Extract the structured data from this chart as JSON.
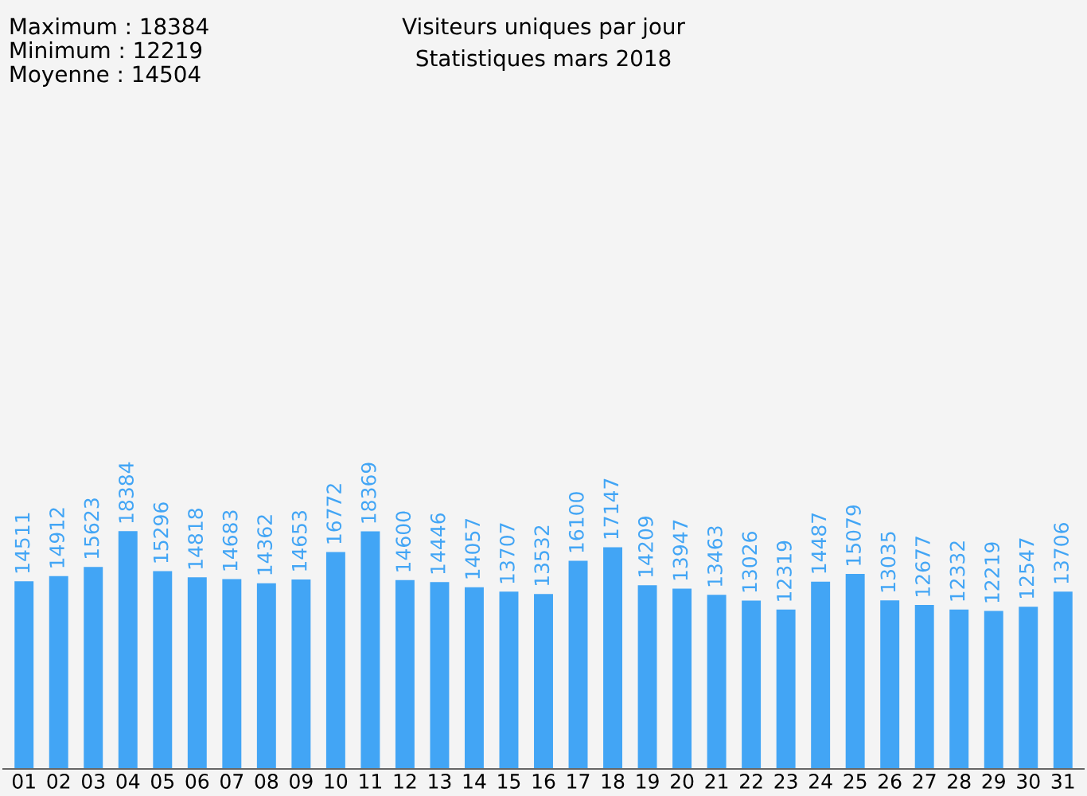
{
  "chart_data": {
    "type": "bar",
    "title": "Visiteurs uniques par jour",
    "subtitle": "Statistiques mars 2018",
    "annotations": [
      "Maximum : 18384",
      "Minimum : 12219",
      "Moyenne : 14504"
    ],
    "categories": [
      "01",
      "02",
      "03",
      "04",
      "05",
      "06",
      "07",
      "08",
      "09",
      "10",
      "11",
      "12",
      "13",
      "14",
      "15",
      "16",
      "17",
      "18",
      "19",
      "20",
      "21",
      "22",
      "23",
      "24",
      "25",
      "26",
      "27",
      "28",
      "29",
      "30",
      "31"
    ],
    "values": [
      14511,
      14912,
      15623,
      18384,
      15296,
      14818,
      14683,
      14362,
      14653,
      16772,
      18369,
      14600,
      14446,
      14057,
      13707,
      13532,
      16100,
      17147,
      14209,
      13947,
      13463,
      13026,
      12319,
      14487,
      15079,
      13035,
      12677,
      12332,
      12219,
      12547,
      13706
    ],
    "color": "#42a5f5",
    "data_labels": true,
    "tick_labels": "x",
    "grid": false,
    "legend": false
  }
}
